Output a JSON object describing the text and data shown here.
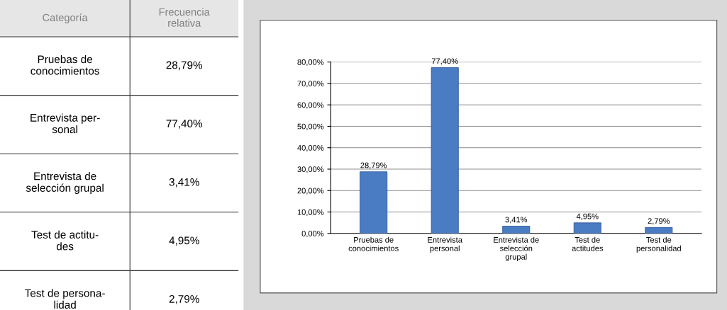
{
  "chart_data": [
    {
      "type": "other",
      "annotations": [
        "Categoría",
        "Frecuencia\nrelativa",
        "Pruebas de\nconocimientos",
        "28,79%",
        "Entrevista per-\nsonal",
        "77,40%",
        "Entrevista de\nselección grupal",
        "3,41%",
        "Test de actitu-\ndes",
        "4,95%",
        "Test de persona-\nlidad",
        "2,79%"
      ]
    },
    {
      "type": "bar",
      "categories": [
        "Pruebas de\nconocimientos",
        "Entrevista\npersonal",
        "Entrevista de\nselección\ngrupal",
        "Test de\nactitudes",
        "Test de\npersonalidad"
      ],
      "values": [
        28.79,
        77.4,
        3.41,
        4.95,
        2.79
      ],
      "value_labels": [
        "28,79%",
        "77,40%",
        "3,41%",
        "4,95%",
        "2,79%"
      ],
      "color": "#4a7cc4",
      "ylim": [
        0,
        80
      ],
      "yticks": [
        {
          "value": 0,
          "label": "0,00%"
        },
        {
          "value": 10,
          "label": "10,00%"
        },
        {
          "value": 20,
          "label": "20,00%"
        },
        {
          "value": 30,
          "label": "30,00%"
        },
        {
          "value": 40,
          "label": "40,00%"
        },
        {
          "value": 50,
          "label": "50,00%"
        },
        {
          "value": 60,
          "label": "60,00%"
        },
        {
          "value": 70,
          "label": "70,00%"
        },
        {
          "value": 80,
          "label": "80,00%"
        }
      ],
      "grid": "y",
      "legend": false
    }
  ]
}
